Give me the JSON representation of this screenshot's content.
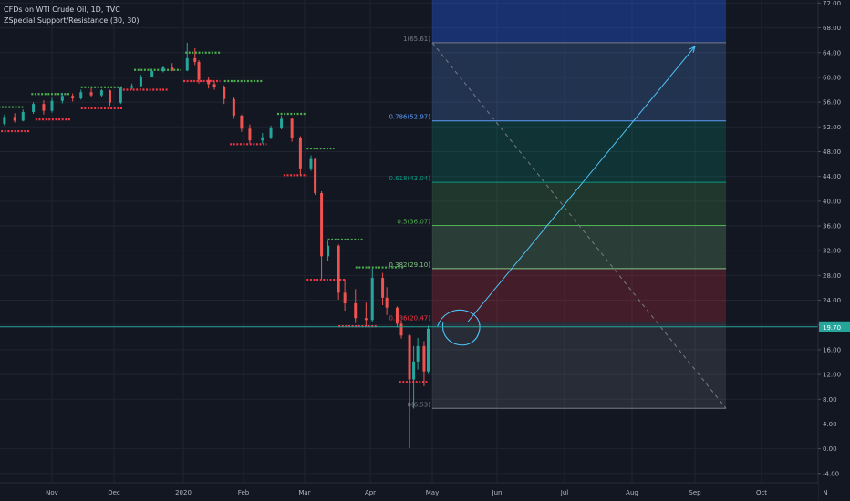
{
  "chart_data": {
    "type": "candlestick",
    "title": "CFDs on WTI Crude Oil, 1D, TVC",
    "indicator": "ZSpecial Support/Resistance (30, 30)",
    "x_axis": {
      "labels": [
        "Nov",
        "Dec",
        "2020",
        "Feb",
        "Mar",
        "Apr",
        "May",
        "Jun",
        "Jul",
        "Aug",
        "Sep",
        "Oct",
        "N"
      ],
      "dates": [
        "2019-11-01",
        "2019-12-01",
        "2020-01-01",
        "2020-02-01",
        "2020-03-01",
        "2020-04-01",
        "2020-05-01",
        "2020-06-01",
        "2020-07-01",
        "2020-08-01",
        "2020-09-01",
        "2020-10-01",
        "2020-11-01"
      ]
    },
    "y_axis": {
      "range": [
        -5.5,
        72.5
      ],
      "ticks": [
        "72.00",
        "68.00",
        "64.00",
        "60.00",
        "56.00",
        "52.00",
        "48.00",
        "44.00",
        "40.00",
        "36.00",
        "32.00",
        "28.00",
        "24.00",
        "20.00",
        "16.00",
        "12.00",
        "8.00",
        "4.00",
        "0.00",
        "-4.00"
      ]
    },
    "last_price": {
      "value": 19.7,
      "label": "19.70"
    },
    "fibonacci": {
      "start": {
        "date": "2020-05-01",
        "price": 65.61
      },
      "end": {
        "date": "2020-09-15",
        "price": 6.53
      },
      "levels": [
        {
          "ratio": 1,
          "price": 65.61,
          "label": "1(65.61)",
          "color": "#787b86"
        },
        {
          "ratio": 0.786,
          "price": 52.97,
          "label": "0.786(52.97)",
          "color": "#5b9cf6"
        },
        {
          "ratio": 0.618,
          "price": 43.04,
          "label": "0.618(43.04)",
          "color": "#089981"
        },
        {
          "ratio": 0.5,
          "price": 36.07,
          "label": "0.5(36.07)",
          "color": "#4caf50"
        },
        {
          "ratio": 0.382,
          "price": 29.1,
          "label": "0.382(29.10)",
          "color": "#81c784"
        },
        {
          "ratio": 0.236,
          "price": 20.47,
          "label": "0.236(20.47)",
          "color": "#f23645"
        },
        {
          "ratio": 0,
          "price": 6.53,
          "label": "0(6.53)",
          "color": "#787b86"
        }
      ],
      "extension": {
        "price": 72.5,
        "color": "#2962ff"
      }
    },
    "annotations": [
      {
        "type": "arrow",
        "from": {
          "date": "2020-05-18",
          "price": 20.5
        },
        "to": {
          "date": "2020-09-01",
          "price": 65.0
        },
        "color": "#4fc3f7"
      },
      {
        "type": "circle",
        "center": {
          "date": "2020-05-14",
          "price": 19.5
        },
        "color": "#4fc3f7"
      }
    ],
    "ohlc": [
      [
        "2019-10-01",
        54.0,
        54.5,
        52.8,
        53.3
      ],
      [
        "2019-10-04",
        53.3,
        53.6,
        51.8,
        52.5
      ],
      [
        "2019-10-09",
        52.5,
        54.0,
        52.2,
        53.6
      ],
      [
        "2019-10-14",
        53.6,
        54.2,
        52.7,
        53.0
      ],
      [
        "2019-10-18",
        53.0,
        54.8,
        52.9,
        54.4
      ],
      [
        "2019-10-23",
        54.4,
        56.0,
        54.1,
        55.7
      ],
      [
        "2019-10-28",
        55.7,
        56.3,
        54.0,
        54.6
      ],
      [
        "2019-11-01",
        54.6,
        56.7,
        54.3,
        56.2
      ],
      [
        "2019-11-06",
        56.2,
        57.5,
        55.8,
        57.0
      ],
      [
        "2019-11-11",
        57.0,
        57.4,
        56.1,
        56.6
      ],
      [
        "2019-11-15",
        56.6,
        58.0,
        56.4,
        57.6
      ],
      [
        "2019-11-20",
        57.6,
        58.3,
        56.8,
        57.1
      ],
      [
        "2019-11-25",
        57.1,
        58.1,
        56.9,
        57.9
      ],
      [
        "2019-11-29",
        57.9,
        58.0,
        55.4,
        55.9
      ],
      [
        "2019-12-04",
        55.9,
        58.5,
        55.7,
        58.3
      ],
      [
        "2019-12-09",
        58.3,
        59.0,
        58.0,
        58.6
      ],
      [
        "2019-12-13",
        58.6,
        60.4,
        58.5,
        60.1
      ],
      [
        "2019-12-18",
        60.1,
        61.2,
        60.0,
        61.0
      ],
      [
        "2019-12-23",
        61.0,
        61.9,
        60.8,
        61.6
      ],
      [
        "2019-12-27",
        61.6,
        62.3,
        61.0,
        61.1
      ],
      [
        "2020-01-03",
        61.1,
        65.6,
        61.0,
        63.1
      ],
      [
        "2020-01-07",
        63.1,
        64.7,
        62.0,
        62.5
      ],
      [
        "2020-01-09",
        62.5,
        62.8,
        59.0,
        59.6
      ],
      [
        "2020-01-14",
        59.6,
        60.0,
        58.2,
        58.9
      ],
      [
        "2020-01-17",
        58.9,
        59.4,
        58.0,
        58.5
      ],
      [
        "2020-01-22",
        58.5,
        58.7,
        55.7,
        56.5
      ],
      [
        "2020-01-27",
        56.5,
        56.8,
        53.3,
        53.8
      ],
      [
        "2020-01-31",
        53.8,
        54.0,
        51.2,
        51.7
      ],
      [
        "2020-02-04",
        51.7,
        52.4,
        49.3,
        49.8
      ],
      [
        "2020-02-10",
        49.8,
        51.0,
        49.3,
        50.3
      ],
      [
        "2020-02-14",
        50.3,
        52.2,
        50.0,
        51.9
      ],
      [
        "2020-02-19",
        51.9,
        53.8,
        51.6,
        53.3
      ],
      [
        "2020-02-24",
        53.3,
        53.5,
        49.6,
        50.2
      ],
      [
        "2020-02-28",
        50.2,
        50.5,
        44.2,
        45.3
      ],
      [
        "2020-03-04",
        45.3,
        47.4,
        44.9,
        46.8
      ],
      [
        "2020-03-06",
        46.8,
        47.0,
        41.0,
        41.3
      ],
      [
        "2020-03-09",
        41.3,
        41.6,
        27.4,
        31.1
      ],
      [
        "2020-03-12",
        31.1,
        33.6,
        30.3,
        32.8
      ],
      [
        "2020-03-17",
        32.8,
        33.0,
        24.1,
        25.2
      ],
      [
        "2020-03-20",
        25.2,
        27.4,
        22.3,
        23.5
      ],
      [
        "2020-03-25",
        23.5,
        25.8,
        20.3,
        21.1
      ],
      [
        "2020-03-30",
        21.1,
        23.6,
        19.9,
        20.8
      ],
      [
        "2020-04-02",
        20.8,
        29.1,
        20.4,
        27.6
      ],
      [
        "2020-04-07",
        27.6,
        28.4,
        23.2,
        24.4
      ],
      [
        "2020-04-09",
        24.4,
        26.1,
        21.6,
        22.8
      ],
      [
        "2020-04-14",
        22.8,
        23.0,
        19.6,
        20.2
      ],
      [
        "2020-04-16",
        20.2,
        20.7,
        17.8,
        18.3
      ],
      [
        "2020-04-20",
        18.3,
        18.5,
        0.1,
        11.2
      ],
      [
        "2020-04-22",
        11.2,
        16.6,
        6.5,
        14.1
      ],
      [
        "2020-04-24",
        14.1,
        17.9,
        12.8,
        16.6
      ],
      [
        "2020-04-27",
        16.6,
        17.4,
        10.1,
        12.5
      ],
      [
        "2020-04-29",
        12.5,
        19.9,
        12.1,
        19.4
      ]
    ],
    "resistance": [
      [
        "2019-10-03",
        "2019-10-18",
        55.2
      ],
      [
        "2019-10-22",
        "2019-11-10",
        57.3
      ],
      [
        "2019-11-15",
        "2019-12-05",
        58.4
      ],
      [
        "2019-12-10",
        "2019-12-31",
        61.2
      ],
      [
        "2020-01-02",
        "2020-01-20",
        64.0
      ],
      [
        "2020-01-22",
        "2020-02-10",
        59.4
      ],
      [
        "2020-02-17",
        "2020-03-02",
        54.1
      ],
      [
        "2020-03-02",
        "2020-03-15",
        48.5
      ],
      [
        "2020-03-12",
        "2020-03-29",
        33.8
      ],
      [
        "2020-03-25",
        "2020-04-17",
        29.3
      ]
    ],
    "support": [
      [
        "2019-10-01",
        "2019-10-21",
        51.3
      ],
      [
        "2019-10-24",
        "2019-11-10",
        53.2
      ],
      [
        "2019-11-15",
        "2019-12-05",
        55.0
      ],
      [
        "2019-12-05",
        "2019-12-25",
        58.0
      ],
      [
        "2020-01-01",
        "2020-01-20",
        59.4
      ],
      [
        "2020-01-25",
        "2020-02-12",
        49.2
      ],
      [
        "2020-02-20",
        "2020-03-02",
        44.2
      ],
      [
        "2020-03-02",
        "2020-03-20",
        27.3
      ],
      [
        "2020-03-17",
        "2020-04-05",
        19.8
      ],
      [
        "2020-04-15",
        "2020-04-29",
        10.8
      ]
    ]
  },
  "colors": {
    "background": "#131722",
    "grid": "#1f2431",
    "up": "#26a69a",
    "down": "#ef5350",
    "text": "#b2b5be",
    "price_line": "#26a69a"
  }
}
